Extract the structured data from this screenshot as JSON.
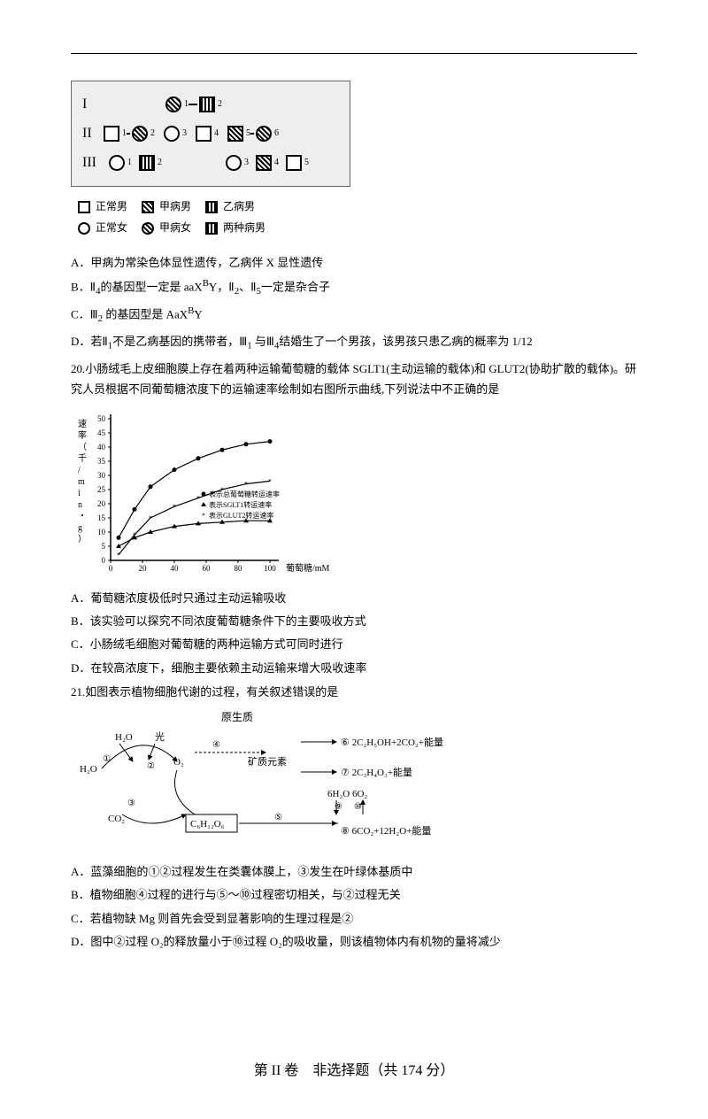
{
  "pedigree": {
    "generations": [
      "I",
      "II",
      "III"
    ],
    "legend": {
      "normal_male": "正常男",
      "normal_female": "正常女",
      "a_male": "甲病男",
      "a_female": "甲病女",
      "b_male": "乙病男",
      "both_male": "两种病男"
    }
  },
  "q19": {
    "optA": "A．甲病为常染色体显性遗传，乙病伴 X 显性遗传",
    "optB_pre": "B．Ⅱ",
    "optB_sub1": "4",
    "optB_mid1": "的基因型一定是 aaX",
    "optB_sup1": "B",
    "optB_mid2": "Y，Ⅱ",
    "optB_sub2": "2",
    "optB_mid3": "、Ⅱ",
    "optB_sub3": "5",
    "optB_end": "一定是杂合子",
    "optC_pre": "C．Ⅲ",
    "optC_sub1": "2",
    "optC_mid1": " 的基因型是 AaX",
    "optC_sup1": "B",
    "optC_end": "Y",
    "optD_pre": "D．若Ⅱ",
    "optD_sub1": "1",
    "optD_mid1": "不是乙病基因的携带者，Ⅲ",
    "optD_sub2": "1",
    "optD_mid2": " 与Ⅲ",
    "optD_sub3": "4",
    "optD_end": "结婚生了一个男孩，该男孩只患乙病的概率为 1/12"
  },
  "q20": {
    "stem": "20.小肠绒毛上皮细胞膜上存在着两种运输葡萄糖的载体 SGLT1(主动运输的载体)和 GLUT2(协助扩散的载体)。研究人员根据不同葡萄糖浓度下的运输速率绘制如右图所示曲线,下列说法中不正确的是",
    "chart": {
      "y_label": "速率（千/min・g）",
      "y_ticks": [
        0,
        5,
        10,
        15,
        20,
        25,
        30,
        35,
        40,
        45,
        50
      ],
      "x_ticks": [
        0,
        20,
        40,
        60,
        80,
        100
      ],
      "x_label": "葡萄糖/mM",
      "series": [
        {
          "name": "表示总葡萄糖转运速率",
          "marker": "circle-filled",
          "values": [
            [
              5,
              8
            ],
            [
              15,
              18
            ],
            [
              25,
              26
            ],
            [
              40,
              32
            ],
            [
              55,
              36
            ],
            [
              70,
              39
            ],
            [
              85,
              41
            ],
            [
              100,
              42
            ]
          ]
        },
        {
          "name": "表示SGLT1转运速率",
          "marker": "triangle",
          "values": [
            [
              5,
              5
            ],
            [
              15,
              8
            ],
            [
              25,
              10
            ],
            [
              40,
              12
            ],
            [
              55,
              13
            ],
            [
              70,
              13.5
            ],
            [
              85,
              14
            ],
            [
              100,
              14
            ]
          ]
        },
        {
          "name": "表示GLUT2转运速率",
          "marker": "star",
          "values": [
            [
              5,
              2
            ],
            [
              15,
              9
            ],
            [
              25,
              15
            ],
            [
              40,
              19
            ],
            [
              55,
              22
            ],
            [
              70,
              25
            ],
            [
              85,
              27
            ],
            [
              100,
              28
            ]
          ]
        }
      ],
      "colors": {
        "axis": "#000",
        "line": "#000",
        "bg": "#fff"
      }
    },
    "optA": "A．葡萄糖浓度极低时只通过主动运输吸收",
    "optB": "B．该实验可以探究不同浓度葡萄糖条件下的主要吸收方式",
    "optC": "C．小肠绒毛细胞对葡萄糖的两种运输方式可同时进行",
    "optD": "D．在较高浓度下，细胞主要依赖主动运输来增大吸收速率"
  },
  "q21": {
    "stem": "21.如图表示植物细胞代谢的过程，有关叙述错误的是",
    "diagram": {
      "labels": {
        "raw": "原生质",
        "h2o_in": "H₂O",
        "h2o_out": "H₂O",
        "light": "光",
        "o2": "O₂",
        "co2": "CO₂",
        "mineral": "矿质元素",
        "glucose": "C₆H₁₂O₆",
        "eq6": "2C₂H₅OH+2CO₂+能量",
        "eq7": "2C₃H₄O₃+能量",
        "eq_mid": "6H₂O  6O₂",
        "eq8": "6CO₂+12H₂O+能量",
        "n1": "①",
        "n2": "②",
        "n3": "③",
        "n4": "④",
        "n5": "⑤",
        "n6": "⑥",
        "n7": "⑦",
        "n8": "⑧",
        "n9": "⑨",
        "n10": "⑩"
      }
    },
    "optA": "A．蓝藻细胞的①②过程发生在类囊体膜上，③发生在叶绿体基质中",
    "optB": "B．植物细胞④过程的进行与⑤～⑩过程密切相关，与②过程无关",
    "optC": "C．若植物缺 Mg 则首先会受到显著影响的生理过程是②",
    "optD": "D．图中②过程 O₂的释放量小于⑩过程 O₂的吸收量，则该植物体内有机物的量将减少"
  },
  "section2": "第 II 卷　非选择题（共 174 分）"
}
